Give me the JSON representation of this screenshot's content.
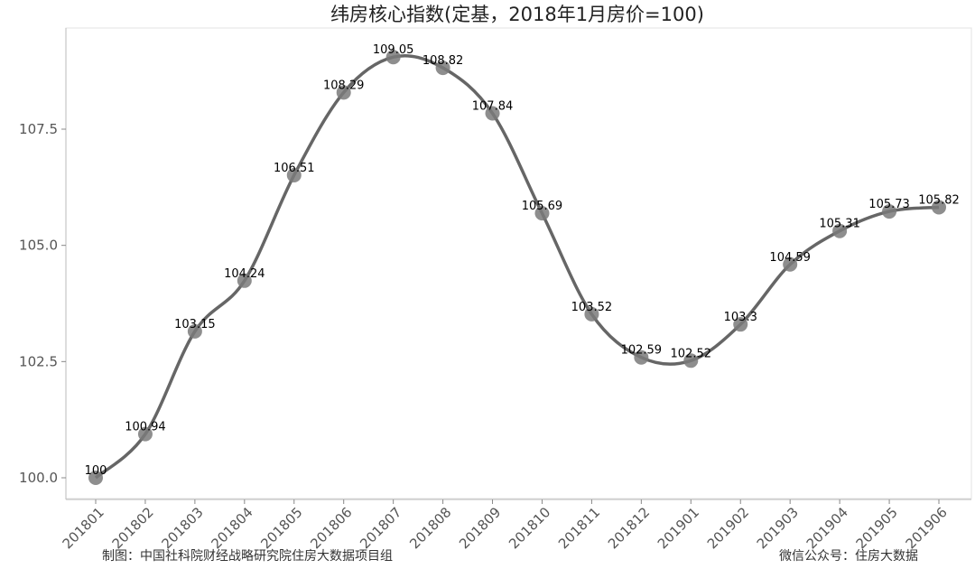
{
  "chart_data": {
    "type": "line",
    "title": "纬房核心指数(定基，2018年1月房价=100)",
    "xlabel": "",
    "ylabel": "",
    "categories": [
      "201801",
      "201802",
      "201803",
      "201804",
      "201805",
      "201806",
      "201807",
      "201808",
      "201809",
      "201810",
      "201811",
      "201812",
      "201901",
      "201902",
      "201903",
      "201904",
      "201905",
      "201906"
    ],
    "values": [
      100,
      100.94,
      103.15,
      104.24,
      106.51,
      108.29,
      109.05,
      108.82,
      107.84,
      105.69,
      103.52,
      102.59,
      102.52,
      103.3,
      104.59,
      105.31,
      105.73,
      105.82
    ],
    "data_labels": [
      "100",
      "100.94",
      "103.15",
      "104.24",
      "106.51",
      "108.29",
      "109.05",
      "108.82",
      "107.84",
      "105.69",
      "103.52",
      "102.59",
      "102.52",
      "103.3",
      "104.59",
      "105.31",
      "105.73",
      "105.82"
    ],
    "yticks": [
      "100.0",
      "102.5",
      "105.0",
      "107.5"
    ],
    "ytick_values": [
      100,
      102.5,
      105,
      107.5
    ],
    "ylim": [
      99.6,
      109.4
    ],
    "grid": false,
    "line_color": "#666666",
    "marker_color": "#7a7a7a"
  },
  "footer": {
    "left": "制图：中国社科院财经战略研究院住房大数据项目组",
    "right": "微信公众号：住房大数据"
  }
}
